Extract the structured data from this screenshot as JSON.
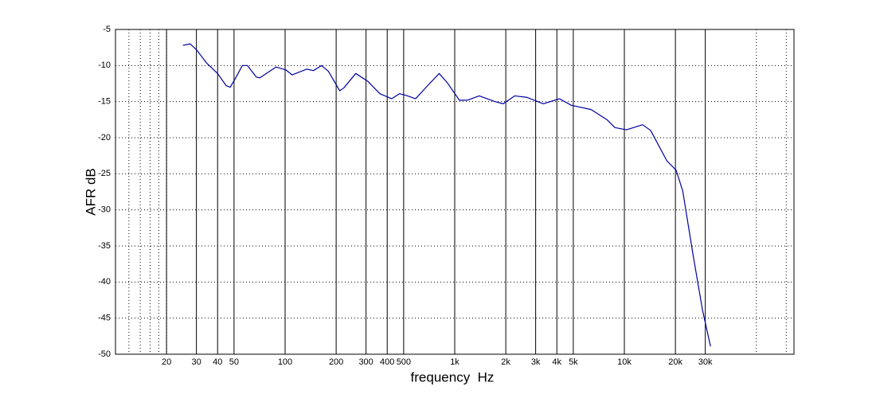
{
  "chart_data": {
    "type": "line",
    "x_label": "frequency  Hz",
    "y_label": "AFR dB",
    "x_scale": "log",
    "grid": true,
    "color": "#0000a0",
    "xlim": [
      10,
      100000
    ],
    "ylim": [
      -50,
      -5
    ],
    "xticks": [
      20,
      30,
      40,
      50,
      100,
      200,
      300,
      400,
      500,
      {
        "value": 1000,
        "label": "1k"
      },
      {
        "value": 2000,
        "label": "2k"
      },
      {
        "value": 3000,
        "label": "3k"
      },
      {
        "value": 4000,
        "label": "4k"
      },
      {
        "value": 5000,
        "label": "5k"
      },
      {
        "value": 10000,
        "label": "10k"
      },
      {
        "value": 20000,
        "label": "20k"
      },
      {
        "value": 30000,
        "label": "30k"
      }
    ],
    "x_minor_grid": [
      12,
      14,
      16,
      18,
      20,
      60000,
      90000
    ],
    "yticks": [
      -50,
      -45,
      -40,
      -35,
      -30,
      -25,
      -20,
      -15,
      -10,
      -5
    ],
    "x": [
      25,
      27.6,
      30,
      34.6,
      40,
      45,
      47.5,
      50.6,
      56,
      60,
      67.7,
      71,
      88.5,
      101,
      110,
      134,
      147,
      164,
      180,
      210,
      222,
      261,
      308,
      362,
      425,
      472,
      527,
      588,
      691,
      810,
      905,
      1065,
      1190,
      1395,
      1730,
      1930,
      2260,
      2655,
      3330,
      4140,
      4860,
      6370,
      7900,
      8800,
      10300,
      12800,
      14300,
      17800,
      20200,
      22100,
      25400,
      28900,
      32200
    ],
    "values": [
      -7.2,
      -7.0,
      -7.8,
      -9.7,
      -11.1,
      -12.8,
      -13.0,
      -11.9,
      -10.0,
      -10.0,
      -11.6,
      -11.7,
      -10.2,
      -10.6,
      -11.3,
      -10.5,
      -10.7,
      -10.0,
      -10.8,
      -13.5,
      -13.1,
      -11.1,
      -12.2,
      -13.9,
      -14.6,
      -13.9,
      -14.2,
      -14.6,
      -12.8,
      -11.1,
      -12.4,
      -14.8,
      -14.8,
      -14.2,
      -15.0,
      -15.3,
      -14.2,
      -14.4,
      -15.3,
      -14.6,
      -15.5,
      -16.1,
      -17.5,
      -18.6,
      -18.9,
      -18.2,
      -19.0,
      -23.2,
      -24.5,
      -27.4,
      -36.2,
      -43.9,
      -48.9
    ]
  }
}
